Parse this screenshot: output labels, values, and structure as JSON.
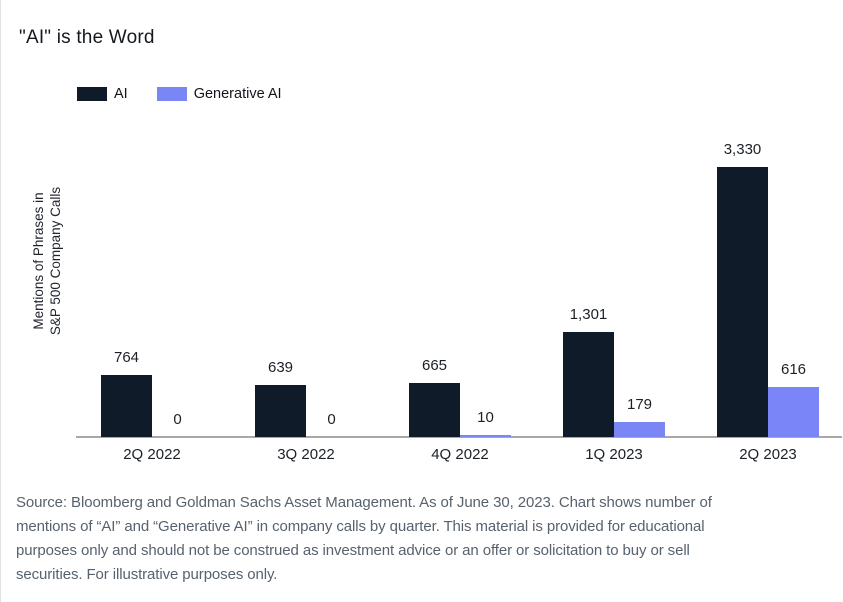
{
  "header": {
    "title": "\"AI\" is the Word"
  },
  "legend": {
    "items": [
      {
        "label": "AI",
        "color": "#101b29"
      },
      {
        "label": "Generative AI",
        "color": "#7b86f6"
      }
    ]
  },
  "chart_data": {
    "type": "bar",
    "title": "\"AI\" is the Word",
    "ylabel_lines": [
      "Mentions of Phrases in",
      "S&P 500 Company Calls"
    ],
    "categories": [
      "2Q 2022",
      "3Q 2022",
      "4Q 2022",
      "1Q 2023",
      "2Q 2023"
    ],
    "series": [
      {
        "name": "AI",
        "color": "#101b29",
        "values": [
          764,
          639,
          665,
          1301,
          3330
        ],
        "value_labels": [
          "764",
          "639",
          "665",
          "1,301",
          "3,330"
        ]
      },
      {
        "name": "Generative AI",
        "color": "#7b86f6",
        "values": [
          0,
          0,
          10,
          179,
          616
        ],
        "value_labels": [
          "0",
          "0",
          "10",
          "179",
          "616"
        ]
      }
    ],
    "ylim": [
      0,
      3330
    ],
    "grid": false,
    "legend_position": "top-left",
    "axis_color": "#a8a8a8"
  },
  "footer": {
    "lines": [
      "Source: Bloomberg and Goldman Sachs Asset Management. As of June 30, 2023. Chart shows number of",
      "mentions of “AI” and “Generative AI” in company calls by quarter. This material is provided for educational",
      "purposes only and should not be construed as investment advice or an offer or solicitation to buy or sell",
      "securities. For illustrative purposes only."
    ]
  }
}
